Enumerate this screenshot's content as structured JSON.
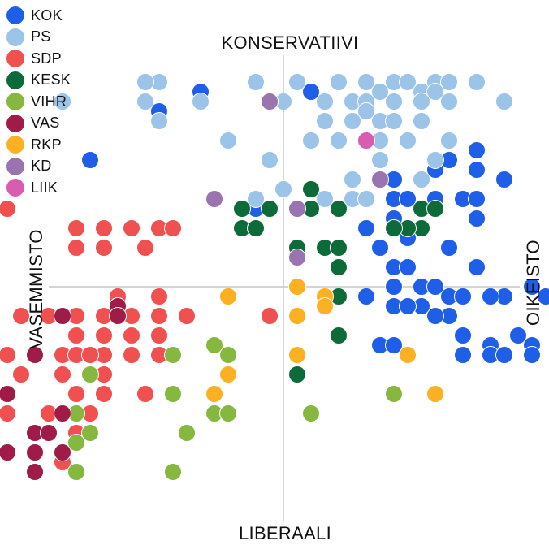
{
  "chart_data": {
    "type": "scatter",
    "title": "",
    "axis_labels": {
      "top": "KONSERVATIIVI",
      "bottom": "LIBERAALI",
      "left": "VASEMMISTO",
      "right": "OIKEISTO"
    },
    "xlim": [
      -10,
      10
    ],
    "ylim": [
      -10,
      10
    ],
    "grid": false,
    "legend_position": "top-left",
    "series": [
      {
        "name": "KOK",
        "color": "#1f5fe8",
        "points": [
          [
            3,
            7.5
          ],
          [
            4,
            5.5
          ],
          [
            6,
            6.5
          ],
          [
            5.5,
            6
          ],
          [
            7,
            6
          ],
          [
            7,
            7
          ],
          [
            8,
            5.5
          ],
          [
            7,
            3.5
          ],
          [
            4,
            3.5
          ],
          [
            4.5,
            2.5
          ],
          [
            6,
            2
          ],
          [
            7,
            1
          ],
          [
            5,
            0
          ],
          [
            4,
            0
          ],
          [
            6,
            -1.5
          ],
          [
            5.5,
            -1.5
          ],
          [
            8.5,
            -2.5
          ],
          [
            8.5,
            -2.5
          ],
          [
            6.5,
            -2.5
          ],
          [
            3.5,
            -3
          ],
          [
            4,
            -3
          ],
          [
            7.5,
            -3
          ],
          [
            9,
            -3
          ],
          [
            4,
            -1
          ],
          [
            5,
            -1
          ],
          [
            4.5,
            -1
          ],
          [
            6,
            -0.5
          ],
          [
            9,
            0
          ],
          [
            8,
            -0.5
          ],
          [
            6.5,
            -0.5
          ],
          [
            7.5,
            -0.5
          ],
          [
            9.5,
            -0.5
          ],
          [
            5.5,
            0
          ],
          [
            4,
            1
          ],
          [
            4.5,
            1
          ],
          [
            3.5,
            2
          ],
          [
            4,
            3
          ],
          [
            3,
            3
          ],
          [
            1,
            4
          ],
          [
            -1,
            4
          ],
          [
            4,
            4.5
          ],
          [
            4.5,
            4.5
          ],
          [
            5.5,
            4.5
          ],
          [
            6.5,
            4.5
          ],
          [
            7,
            4.5
          ],
          [
            3,
            -0.5
          ],
          [
            6.5,
            -3.5
          ],
          [
            7.5,
            -3.5
          ],
          [
            8,
            -3.5
          ],
          [
            9,
            -3.5
          ],
          [
            -7,
            6.5
          ],
          [
            -4.5,
            9
          ],
          [
            -3,
            10
          ],
          [
            1,
            10
          ]
        ]
      },
      {
        "name": "PS",
        "color": "#9cc3e8",
        "points": [
          [
            -4.5,
            10.5
          ],
          [
            -5,
            10.5
          ],
          [
            -1,
            10.5
          ],
          [
            0.5,
            10.5
          ],
          [
            2,
            10.5
          ],
          [
            3,
            10.5
          ],
          [
            4,
            10.5
          ],
          [
            4.5,
            10.5
          ],
          [
            5.5,
            10.5
          ],
          [
            6,
            10.5
          ],
          [
            7,
            10.5
          ],
          [
            -8,
            9.5
          ],
          [
            -5,
            9.5
          ],
          [
            -3,
            9.5
          ],
          [
            0,
            9.5
          ],
          [
            1.5,
            9.5
          ],
          [
            2.5,
            9.5
          ],
          [
            3,
            9.5
          ],
          [
            4,
            9.5
          ],
          [
            5,
            9.5
          ],
          [
            6,
            9.5
          ],
          [
            8,
            9.5
          ],
          [
            -4.5,
            8.5
          ],
          [
            1.5,
            8.5
          ],
          [
            2.5,
            8.5
          ],
          [
            3.5,
            8.5
          ],
          [
            4,
            8.5
          ],
          [
            5,
            8.5
          ],
          [
            -2,
            7.5
          ],
          [
            1,
            7.5
          ],
          [
            2,
            7.5
          ],
          [
            3.5,
            7.5
          ],
          [
            4.5,
            7.5
          ],
          [
            6,
            7.5
          ],
          [
            3.5,
            6.5
          ],
          [
            5.5,
            6.5
          ],
          [
            -0.5,
            6.5
          ],
          [
            -1,
            4.5
          ],
          [
            1.5,
            4.5
          ],
          [
            2.5,
            4.5
          ],
          [
            3,
            4.5
          ],
          [
            0,
            5
          ],
          [
            3,
            9
          ],
          [
            3.5,
            10
          ],
          [
            5,
            10
          ],
          [
            5.5,
            10
          ],
          [
            5,
            9.5
          ],
          [
            2.5,
            5.5
          ],
          [
            5,
            5.5
          ]
        ]
      },
      {
        "name": "SDP",
        "color": "#f05050",
        "points": [
          [
            -10,
            4
          ],
          [
            -7.5,
            3
          ],
          [
            -6.5,
            3
          ],
          [
            -5.5,
            3
          ],
          [
            -4.5,
            3
          ],
          [
            -4,
            3
          ],
          [
            -7.5,
            2
          ],
          [
            -6.5,
            2
          ],
          [
            -5,
            2
          ],
          [
            -6,
            -0.5
          ],
          [
            -6,
            -1
          ],
          [
            -9.5,
            -1.5
          ],
          [
            -8.5,
            -1.5
          ],
          [
            -7.5,
            -1.5
          ],
          [
            -6.5,
            -1.5
          ],
          [
            -5.5,
            -1.5
          ],
          [
            -4.5,
            -1.5
          ],
          [
            -3.5,
            -1.5
          ],
          [
            -0.5,
            -1.5
          ],
          [
            -7.5,
            -2.5
          ],
          [
            -6.5,
            -2.5
          ],
          [
            -5.5,
            -2.5
          ],
          [
            -4.5,
            -2.5
          ],
          [
            -9,
            -3.5
          ],
          [
            -8,
            -3.5
          ],
          [
            -7.5,
            -3.5
          ],
          [
            -6.5,
            -3.5
          ],
          [
            -5.5,
            -3.5
          ],
          [
            -4.5,
            -3.5
          ],
          [
            -9.5,
            -4.5
          ],
          [
            -8,
            -4.5
          ],
          [
            -7,
            -4.5
          ],
          [
            -6.5,
            -4.5
          ],
          [
            -7.5,
            -5.5
          ],
          [
            -6.5,
            -5.5
          ],
          [
            -5,
            -5.5
          ],
          [
            -4,
            -5.5
          ],
          [
            -10,
            -6.5
          ],
          [
            -8.5,
            -6.5
          ],
          [
            -7,
            -6.5
          ],
          [
            0.5,
            -3.5
          ],
          [
            -8,
            -9
          ],
          [
            -7.5,
            -7.5
          ],
          [
            -8.5,
            -6.5
          ],
          [
            -10,
            -3.5
          ],
          [
            -9,
            -3.5
          ],
          [
            -7,
            -3.5
          ],
          [
            -4.5,
            -0.5
          ]
        ]
      },
      {
        "name": "KESK",
        "color": "#0d6b3a",
        "points": [
          [
            1,
            5
          ],
          [
            2,
            4
          ],
          [
            -1.5,
            4
          ],
          [
            -0.5,
            4
          ],
          [
            1,
            4
          ],
          [
            5,
            4
          ],
          [
            5.5,
            4
          ],
          [
            -1.5,
            3
          ],
          [
            -1,
            3
          ],
          [
            0.5,
            2
          ],
          [
            1.5,
            2
          ],
          [
            2,
            2
          ],
          [
            2,
            1
          ],
          [
            5,
            3
          ],
          [
            4.5,
            3
          ],
          [
            4,
            3
          ],
          [
            2,
            -0.5
          ],
          [
            2,
            -2.5
          ],
          [
            0.5,
            -3.5
          ],
          [
            0.5,
            -4.5
          ]
        ]
      },
      {
        "name": "VIHR",
        "color": "#86b840",
        "points": [
          [
            -7,
            -4.5
          ],
          [
            -4,
            -3.5
          ],
          [
            -2.5,
            -3
          ],
          [
            -2,
            -3.5
          ],
          [
            -4,
            -5.5
          ],
          [
            -7.5,
            -6.5
          ],
          [
            -2.5,
            -6.5
          ],
          [
            -2,
            -6.5
          ],
          [
            1,
            -6.5
          ],
          [
            4,
            -5.5
          ],
          [
            -3.5,
            -7.5
          ],
          [
            -7,
            -7.5
          ],
          [
            -7.5,
            -8
          ],
          [
            -4,
            -9.5
          ],
          [
            -7.5,
            -9.5
          ]
        ]
      },
      {
        "name": "VAS",
        "color": "#a01c48",
        "points": [
          [
            -6,
            -1
          ],
          [
            -8,
            -1.5
          ],
          [
            -9,
            -3.5
          ],
          [
            -10,
            -5.5
          ],
          [
            -8,
            -6.5
          ],
          [
            -9,
            -7.5
          ],
          [
            -8.5,
            -7.5
          ],
          [
            -10,
            -8.5
          ],
          [
            -9,
            -8.5
          ],
          [
            -8,
            -8.5
          ],
          [
            -9,
            -9.5
          ],
          [
            -6,
            -1.5
          ]
        ]
      },
      {
        "name": "RKP",
        "color": "#fdb022",
        "points": [
          [
            -2,
            -0.5
          ],
          [
            1.5,
            -0.5
          ],
          [
            1.5,
            -1
          ],
          [
            0.5,
            -1.5
          ],
          [
            0.5,
            -3.5
          ],
          [
            -2,
            -4.5
          ],
          [
            4.5,
            -3.5
          ],
          [
            0.5,
            0
          ],
          [
            -2.5,
            -5.5
          ],
          [
            5.5,
            -5.5
          ]
        ]
      },
      {
        "name": "KD",
        "color": "#9a74b0",
        "points": [
          [
            -0.5,
            9.5
          ],
          [
            -2.5,
            4.5
          ],
          [
            0.5,
            4
          ],
          [
            0.5,
            1.5
          ],
          [
            3.5,
            5.5
          ]
        ]
      },
      {
        "name": "LIIK",
        "color": "#d85cb0",
        "points": [
          [
            3,
            7.5
          ]
        ]
      }
    ]
  },
  "legend": [
    {
      "label": "KOK",
      "color": "#1f5fe8"
    },
    {
      "label": "PS",
      "color": "#9cc3e8"
    },
    {
      "label": "SDP",
      "color": "#f05050"
    },
    {
      "label": "KESK",
      "color": "#0d6b3a"
    },
    {
      "label": "VIHR",
      "color": "#86b840"
    },
    {
      "label": "VAS",
      "color": "#a01c48"
    },
    {
      "label": "RKP",
      "color": "#fdb022"
    },
    {
      "label": "KD",
      "color": "#9a74b0"
    },
    {
      "label": "LIIK",
      "color": "#d85cb0"
    }
  ]
}
